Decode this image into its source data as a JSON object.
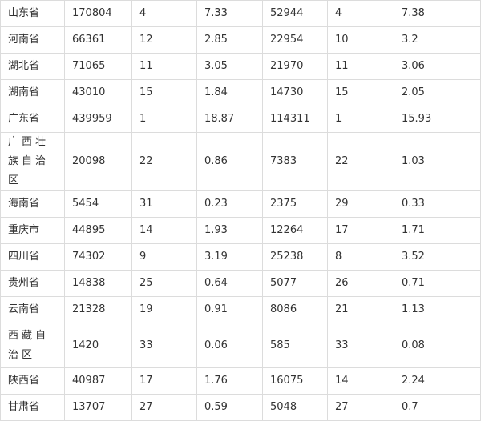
{
  "table": {
    "rows": [
      [
        "山东省",
        "170804",
        "4",
        "7.33",
        "52944",
        "4",
        "7.38"
      ],
      [
        "河南省",
        "66361",
        "12",
        "2.85",
        "22954",
        "10",
        "3.2"
      ],
      [
        "湖北省",
        "71065",
        "11",
        "3.05",
        "21970",
        "11",
        "3.06"
      ],
      [
        "湖南省",
        "43010",
        "15",
        "1.84",
        "14730",
        "15",
        "2.05"
      ],
      [
        "广东省",
        "439959",
        "1",
        "18.87",
        "114311",
        "1",
        "15.93"
      ],
      [
        "广西壮族自治区",
        "20098",
        "22",
        "0.86",
        "7383",
        "22",
        "1.03"
      ],
      [
        "海南省",
        "5454",
        "31",
        "0.23",
        "2375",
        "29",
        "0.33"
      ],
      [
        "重庆市",
        "44895",
        "14",
        "1.93",
        "12264",
        "17",
        "1.71"
      ],
      [
        "四川省",
        "74302",
        "9",
        "3.19",
        "25238",
        "8",
        "3.52"
      ],
      [
        "贵州省",
        "14838",
        "25",
        "0.64",
        "5077",
        "26",
        "0.71"
      ],
      [
        "云南省",
        "21328",
        "19",
        "0.91",
        "8086",
        "21",
        "1.13"
      ],
      [
        "西藏自治区",
        "1420",
        "33",
        "0.06",
        "585",
        "33",
        "0.08"
      ],
      [
        "陕西省",
        "40987",
        "17",
        "1.76",
        "16075",
        "14",
        "2.24"
      ],
      [
        "甘肃省",
        "13707",
        "27",
        "0.59",
        "5048",
        "27",
        "0.7"
      ]
    ]
  }
}
